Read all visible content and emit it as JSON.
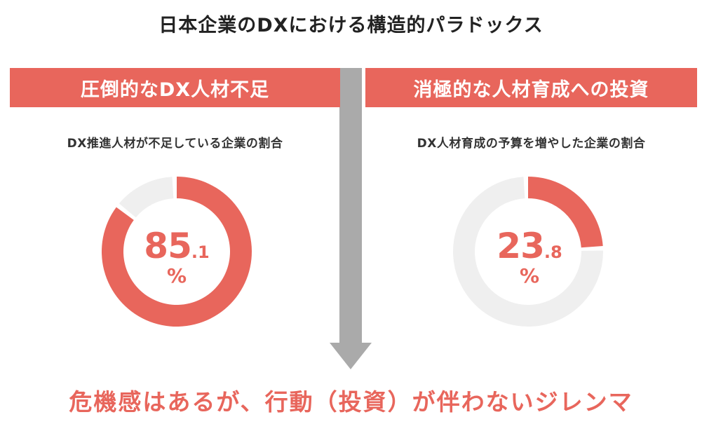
{
  "title": "日本企業のDXにおける構造的パラドックス",
  "conclusion": "危機感はあるが、行動（投資）が伴わないジレンマ",
  "colors": {
    "accent": "#e8665c",
    "track": "#efefef",
    "arrow": "#aaaaaa",
    "text": "#222222"
  },
  "chart_data": [
    {
      "type": "pie",
      "panel_title": "圧倒的なDX人材不足",
      "subtitle": "DX推進人材が不足している企業の割合",
      "value": 85.1,
      "value_int": "85",
      "value_dec": ".1",
      "unit": "%"
    },
    {
      "type": "pie",
      "panel_title": "消極的な人材育成への投資",
      "subtitle": "DX人材育成の予算を増やした企業の割合",
      "value": 23.8,
      "value_int": "23",
      "value_dec": ".8",
      "unit": "%"
    }
  ]
}
